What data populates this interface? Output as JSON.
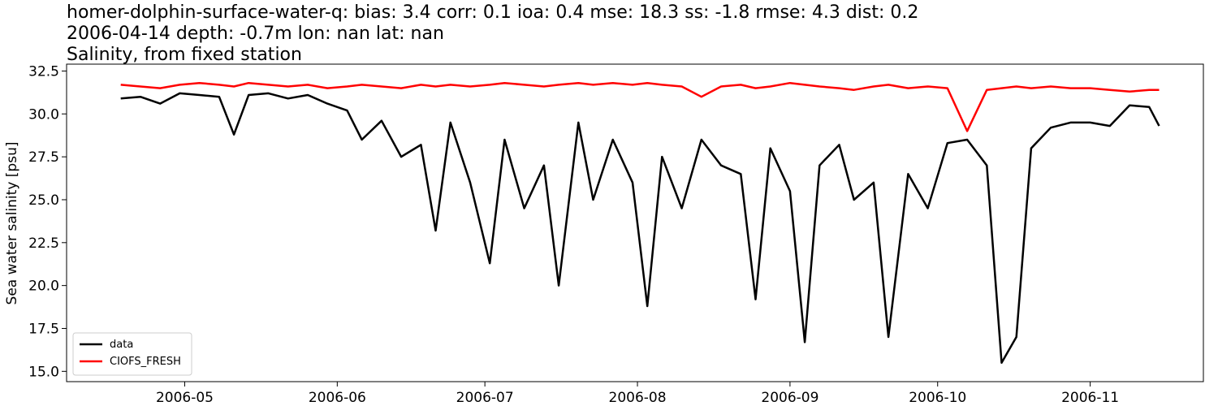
{
  "chart_data": {
    "type": "line",
    "title": "homer-dolphin-surface-water-q: bias: 3.4  corr: 0.1  ioa: 0.4  mse: 18.3  ss: -1.8  rmse: 4.3  dist: 0.2",
    "subtitle": "2006-04-14 depth: -0.7m lon: nan lat: nan",
    "subtitle2": "Salinity, from fixed station",
    "y_label": "Sea water salinity [psu]",
    "x": [
      "2006-04-18",
      "2006-04-22",
      "2006-04-26",
      "2006-04-30",
      "2006-05-04",
      "2006-05-08",
      "2006-05-11",
      "2006-05-14",
      "2006-05-18",
      "2006-05-22",
      "2006-05-26",
      "2006-05-30",
      "2006-06-03",
      "2006-06-06",
      "2006-06-10",
      "2006-06-14",
      "2006-06-18",
      "2006-06-21",
      "2006-06-24",
      "2006-06-28",
      "2006-07-02",
      "2006-07-05",
      "2006-07-09",
      "2006-07-13",
      "2006-07-16",
      "2006-07-20",
      "2006-07-23",
      "2006-07-27",
      "2006-07-31",
      "2006-08-03",
      "2006-08-06",
      "2006-08-10",
      "2006-08-14",
      "2006-08-18",
      "2006-08-22",
      "2006-08-25",
      "2006-08-28",
      "2006-09-01",
      "2006-09-04",
      "2006-09-07",
      "2006-09-11",
      "2006-09-14",
      "2006-09-18",
      "2006-09-21",
      "2006-09-25",
      "2006-09-29",
      "2006-10-03",
      "2006-10-07",
      "2006-10-11",
      "2006-10-14",
      "2006-10-17",
      "2006-10-20",
      "2006-10-24",
      "2006-10-28",
      "2006-11-01",
      "2006-11-05",
      "2006-11-09",
      "2006-11-13",
      "2006-11-15"
    ],
    "series": [
      {
        "name": "data",
        "color": "#000000",
        "values": [
          30.9,
          31.0,
          30.6,
          31.2,
          31.1,
          31.0,
          28.8,
          31.1,
          31.2,
          30.9,
          31.1,
          30.6,
          30.2,
          28.5,
          29.6,
          27.5,
          28.2,
          23.2,
          29.5,
          26.0,
          21.3,
          28.5,
          24.5,
          27.0,
          20.0,
          29.5,
          25.0,
          28.5,
          26.0,
          18.8,
          27.5,
          24.5,
          28.5,
          27.0,
          26.5,
          19.2,
          28.0,
          25.5,
          16.7,
          27.0,
          28.2,
          25.0,
          26.0,
          17.0,
          26.5,
          24.5,
          28.3,
          28.5,
          27.0,
          15.5,
          17.0,
          28.0,
          29.2,
          29.5,
          29.5,
          29.3,
          30.5,
          30.4,
          29.3
        ]
      },
      {
        "name": "CIOFS_FRESH",
        "color": "#ff0000",
        "values": [
          31.7,
          31.6,
          31.5,
          31.7,
          31.8,
          31.7,
          31.6,
          31.8,
          31.7,
          31.6,
          31.7,
          31.5,
          31.6,
          31.7,
          31.6,
          31.5,
          31.7,
          31.6,
          31.7,
          31.6,
          31.7,
          31.8,
          31.7,
          31.6,
          31.7,
          31.8,
          31.7,
          31.8,
          31.7,
          31.8,
          31.7,
          31.6,
          31.0,
          31.6,
          31.7,
          31.5,
          31.6,
          31.8,
          31.7,
          31.6,
          31.5,
          31.4,
          31.6,
          31.7,
          31.5,
          31.6,
          31.5,
          29.0,
          31.4,
          31.5,
          31.6,
          31.5,
          31.6,
          31.5,
          31.5,
          31.4,
          31.3,
          31.4,
          31.4
        ]
      }
    ],
    "xlim": [
      "2006-04-07",
      "2006-11-24"
    ],
    "xticks": [
      {
        "value": "2006-05-01",
        "label": "2006-05"
      },
      {
        "value": "2006-06-01",
        "label": "2006-06"
      },
      {
        "value": "2006-07-01",
        "label": "2006-07"
      },
      {
        "value": "2006-08-01",
        "label": "2006-08"
      },
      {
        "value": "2006-09-01",
        "label": "2006-09"
      },
      {
        "value": "2006-10-01",
        "label": "2006-10"
      },
      {
        "value": "2006-11-01",
        "label": "2006-11"
      }
    ],
    "ylim": [
      14.4,
      32.9
    ],
    "yticks": [
      {
        "value": 15,
        "label": "15.0"
      },
      17.5,
      {
        "value": 20,
        "label": "20.0"
      },
      22.5,
      {
        "value": 25,
        "label": "25.0"
      },
      27.5,
      {
        "value": 30,
        "label": "30.0"
      },
      32.5
    ],
    "grid": false,
    "legend": "lower left"
  }
}
